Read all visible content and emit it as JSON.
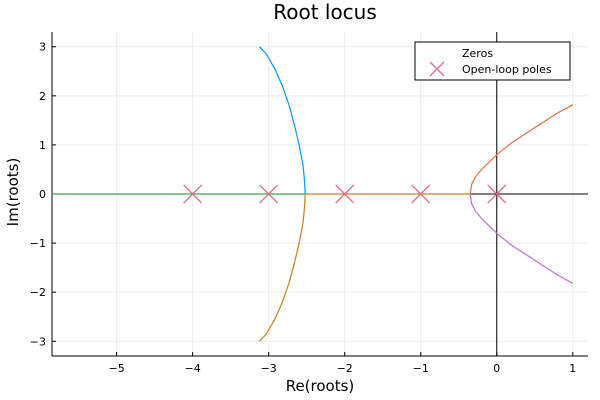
{
  "chart_data": {
    "type": "line",
    "title": "Root locus",
    "xlabel": "Re(roots)",
    "ylabel": "Im(roots)",
    "xlim": [
      -5.85,
      1.2
    ],
    "ylim": [
      -3.3,
      3.3
    ],
    "xticks": [
      -5,
      -4,
      -3,
      -2,
      -1,
      0,
      1
    ],
    "yticks": [
      -3,
      -2,
      -1,
      0,
      1,
      2,
      3
    ],
    "xtick_labels": [
      "−5",
      "−4",
      "−3",
      "−2",
      "−1",
      "0",
      "1"
    ],
    "ytick_labels": [
      "−3",
      "−2",
      "−1",
      "0",
      "1",
      "2",
      "3"
    ],
    "grid": true,
    "legend_position": "top-right",
    "legend": [
      {
        "label": "Zeros",
        "marker": "none",
        "color": "#000000"
      },
      {
        "label": "Open-loop poles",
        "marker": "x",
        "color": "#e26f8a"
      }
    ],
    "poles": {
      "name": "Open-loop poles",
      "color": "#e26f8a",
      "x": [
        -4,
        -3,
        -2,
        -1,
        0
      ],
      "y": [
        0,
        0,
        0,
        0,
        0
      ]
    },
    "series": [
      {
        "color": "#009af9",
        "x": [
          -2.52,
          -2.53,
          -2.55,
          -2.6,
          -2.66,
          -2.73,
          -2.82,
          -2.92,
          -3.03,
          -3.12
        ],
        "y": [
          0,
          0.3,
          0.6,
          1.0,
          1.4,
          1.8,
          2.2,
          2.55,
          2.85,
          3.0
        ]
      },
      {
        "color": "#c68125",
        "x": [
          -2.52,
          -2.53,
          -2.55,
          -2.6,
          -2.66,
          -2.73,
          -2.82,
          -2.92,
          -3.03,
          -3.12
        ],
        "y": [
          0,
          -0.3,
          -0.6,
          -1.0,
          -1.4,
          -1.8,
          -2.2,
          -2.55,
          -2.85,
          -3.0
        ]
      },
      {
        "color": "#e26f46",
        "x": [
          -0.35,
          -0.33,
          -0.28,
          -0.2,
          -0.1,
          0.0,
          0.2,
          0.4,
          0.6,
          0.8,
          1.0
        ],
        "y": [
          0,
          0.2,
          0.35,
          0.5,
          0.65,
          0.8,
          1.05,
          1.25,
          1.45,
          1.65,
          1.82
        ]
      },
      {
        "color": "#c271d2",
        "x": [
          -0.35,
          -0.33,
          -0.28,
          -0.2,
          -0.1,
          0.0,
          0.2,
          0.4,
          0.6,
          0.8,
          1.0
        ],
        "y": [
          0,
          -0.2,
          -0.35,
          -0.5,
          -0.65,
          -0.8,
          -1.05,
          -1.25,
          -1.45,
          -1.65,
          -1.82
        ]
      },
      {
        "color": "#3ea44e",
        "x": [
          -5.85,
          -2.52
        ],
        "y": [
          0,
          0
        ]
      },
      {
        "color": "#c68125",
        "x": [
          -2.52,
          -0.35
        ],
        "y": [
          0,
          0
        ]
      }
    ]
  }
}
